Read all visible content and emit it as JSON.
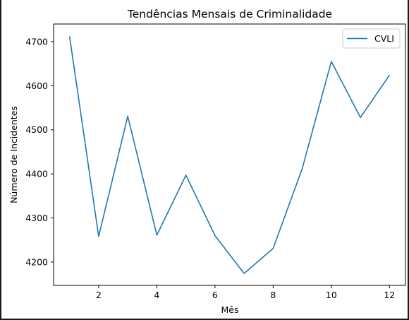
{
  "chart_data": {
    "type": "line",
    "title": "Tendências Mensais de Criminalidade",
    "xlabel": "Mês",
    "ylabel": "Número de Incidentes",
    "xlim": [
      0.45,
      12.55
    ],
    "ylim": [
      4147,
      4740
    ],
    "xticks": [
      2,
      4,
      6,
      8,
      10,
      12
    ],
    "yticks": [
      4200,
      4300,
      4400,
      4500,
      4600,
      4700
    ],
    "grid": false,
    "legend_position": "top-right",
    "series": [
      {
        "name": "CVLI",
        "color": "#1f77b4",
        "x": [
          1,
          2,
          3,
          4,
          5,
          6,
          7,
          8,
          9,
          10,
          11,
          12
        ],
        "y": [
          4712,
          4258,
          4531,
          4261,
          4397,
          4260,
          4174,
          4231,
          4412,
          4655,
          4528,
          4624
        ]
      }
    ]
  }
}
